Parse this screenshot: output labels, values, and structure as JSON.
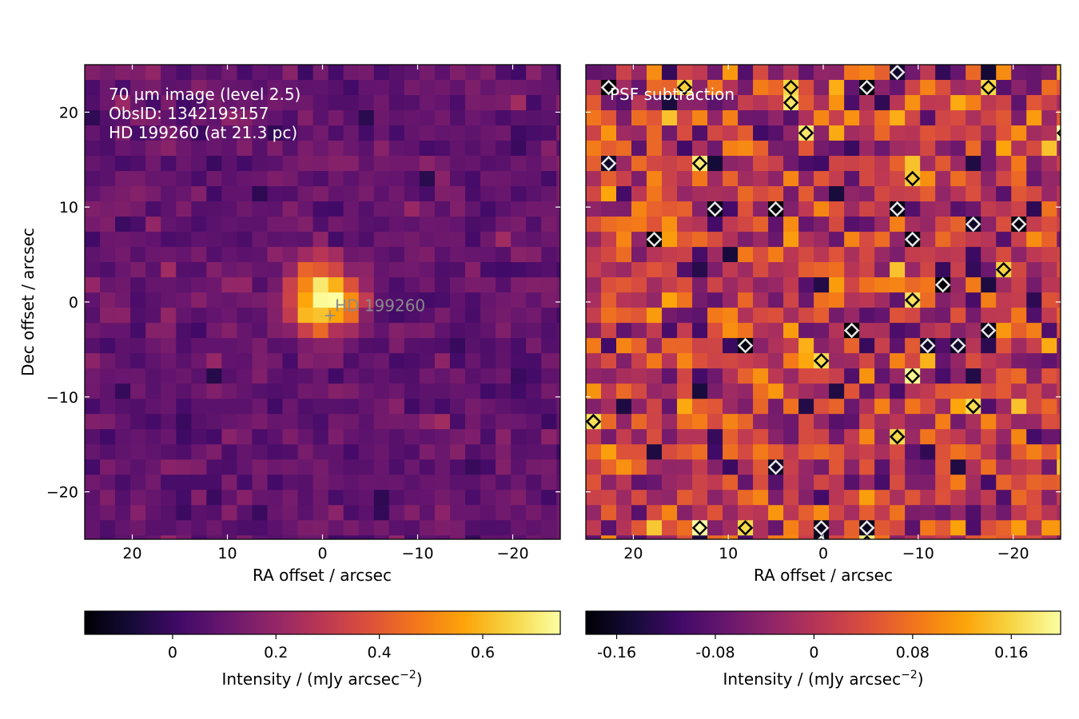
{
  "chart_data": [
    {
      "type": "heatmap",
      "title": "",
      "annotations": [
        "70 µm image (level 2.5)",
        "ObsID: 1342193157",
        "HD 199260 (at 21.3 pc)"
      ],
      "marker": {
        "label": "HD 199260",
        "symbol": "+",
        "x": -0.8,
        "y": -1.3
      },
      "xlabel": "RA offset / arcsec",
      "ylabel": "Dec offset / arcsec",
      "xlim": [
        25,
        -25
      ],
      "ylim": [
        -25,
        25
      ],
      "xticks": [
        20,
        10,
        0,
        -10,
        -20
      ],
      "xtick_labels": [
        "20",
        "10",
        "0",
        "−10",
        "−20"
      ],
      "yticks": [
        20,
        10,
        0,
        -10,
        -20
      ],
      "ytick_labels": [
        "20",
        "10",
        "0",
        "−10",
        "−20"
      ],
      "grid": false,
      "pixel_size_arcsec": 1.6,
      "source": {
        "x": 0,
        "y": 0.2,
        "peak": 0.75,
        "sigma_arcsec": 2.6
      },
      "background": 0.09,
      "noise": 0.045,
      "seed": 7,
      "colormap": "inferno",
      "colorbar": {
        "label": "Intensity / (mJy arcsec",
        "label_sup": "−2",
        "label_end": ")",
        "range": [
          -0.17,
          0.75
        ],
        "ticks": [
          0,
          0.2,
          0.4,
          0.6
        ],
        "tick_labels": [
          "0",
          "0.2",
          "0.4",
          "0.6"
        ]
      }
    },
    {
      "type": "heatmap",
      "title": "",
      "annotations": [
        "PSF subtraction"
      ],
      "xlabel": "RA offset / arcsec",
      "xlim": [
        25,
        -25
      ],
      "ylim": [
        -25,
        25
      ],
      "xticks": [
        20,
        10,
        0,
        -10,
        -20
      ],
      "xtick_labels": [
        "20",
        "10",
        "0",
        "−10",
        "−20"
      ],
      "grid": false,
      "pixel_size_arcsec": 1.6,
      "background": 0.0,
      "noise": 0.07,
      "seed": 23,
      "colormap": "inferno",
      "contours": {
        "levels": [
          -0.15,
          0.15
        ],
        "colors": [
          "#e8e8e8",
          "#000000"
        ]
      },
      "colorbar": {
        "label": "Intensity / (mJy arcsec",
        "label_sup": "−2",
        "label_end": ")",
        "range": [
          -0.185,
          0.2
        ],
        "ticks": [
          -0.16,
          -0.08,
          0,
          0.08,
          0.16
        ],
        "tick_labels": [
          "-0.16",
          "-0.08",
          "0",
          "0.08",
          "0.16"
        ]
      }
    }
  ]
}
